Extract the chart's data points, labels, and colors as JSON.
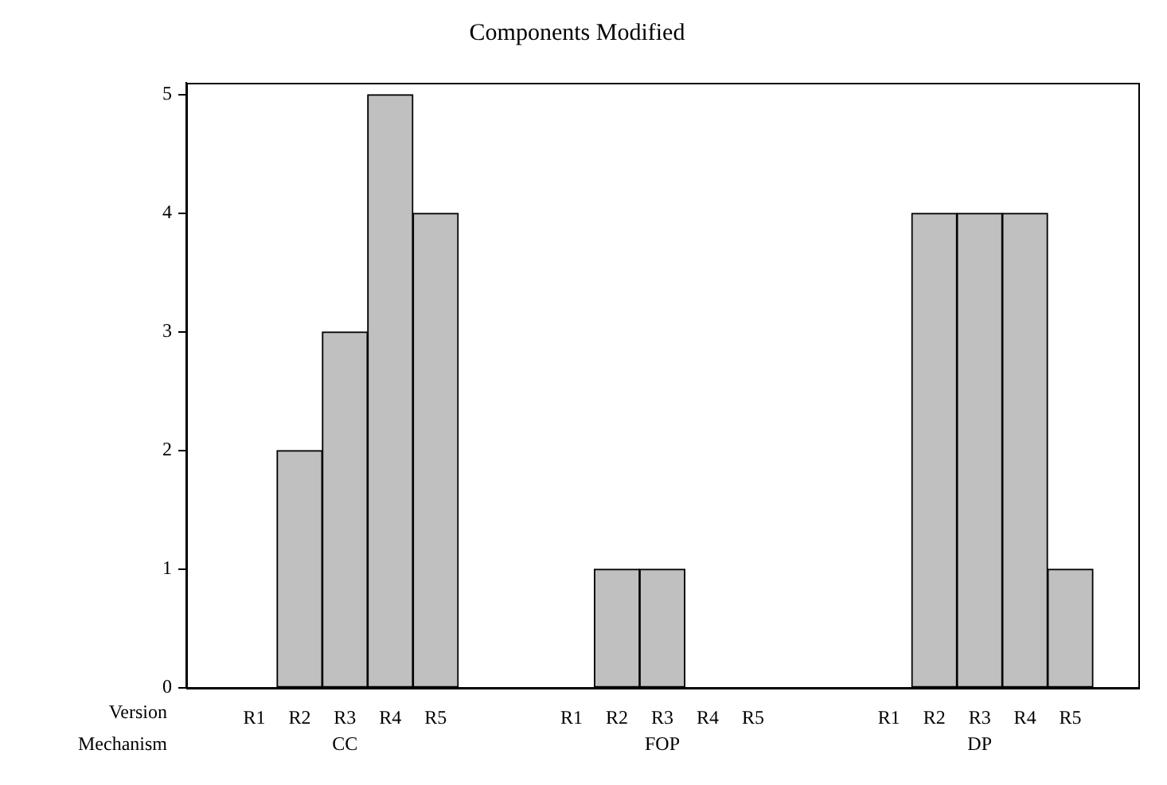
{
  "chart_data": {
    "type": "bar",
    "title": "Components Modified",
    "xlabel": "Version",
    "categories": [
      null,
      "R1",
      "R2",
      "R3",
      "R4",
      "R5",
      null,
      null,
      "R1",
      "R2",
      "R3",
      "R4",
      "R5",
      null,
      null,
      "R1",
      "R2",
      "R3",
      "R4",
      "R5",
      null
    ],
    "values": [
      null,
      0,
      2,
      3,
      5,
      4,
      null,
      null,
      0,
      1,
      1,
      0,
      0,
      null,
      null,
      0,
      4,
      4,
      4,
      1,
      null
    ],
    "color": "#c0c0c0",
    "annotations": [
      "Mechanism",
      "CC",
      "FOP",
      "DP"
    ],
    "ylim": [
      0,
      5.1
    ],
    "yticks": [
      0,
      1,
      2,
      3,
      4,
      5
    ],
    "grid": false,
    "legend": false
  }
}
